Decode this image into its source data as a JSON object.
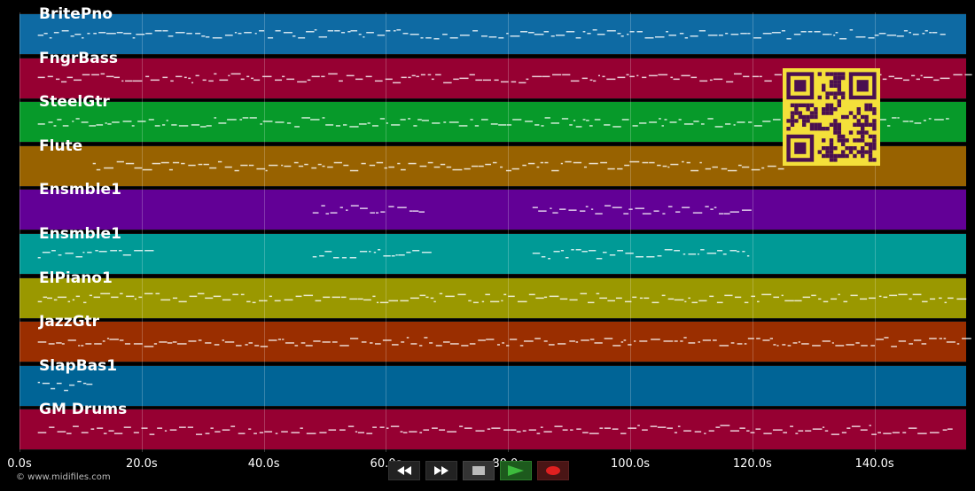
{
  "tracks": [
    {
      "name": "BritePno",
      "color": "#0e6aa3"
    },
    {
      "name": "FngrBass",
      "color": "#960032"
    },
    {
      "name": "SteelGtr",
      "color": "#079a2a"
    },
    {
      "name": "Flute",
      "color": "#986200"
    },
    {
      "name": "Ensmble1",
      "color": "#620096"
    },
    {
      "name": "Ensmble1",
      "color": "#009a96"
    },
    {
      "name": "ElPiano1",
      "color": "#9a9800"
    },
    {
      "name": "JazzGtr",
      "color": "#9a2e00"
    },
    {
      "name": "SlapBas1",
      "color": "#006496"
    },
    {
      "name": "GM Drums",
      "color": "#960032"
    }
  ],
  "timeline": {
    "ticks": [
      "0.0s",
      "20.0s",
      "40.0s",
      "60.0s",
      "80.0s",
      "100.0s",
      "120.0s",
      "140.0s"
    ]
  },
  "copyright": "© www.midifiles.com",
  "controls": {
    "rewind": "rewind-icon",
    "fast_forward": "fast-forward-icon",
    "stop": "stop-icon",
    "play": "play-icon",
    "record": "record-icon",
    "play_color": "#3dbb3d",
    "record_color": "#e02020"
  },
  "qr_color": "#f4e03a"
}
